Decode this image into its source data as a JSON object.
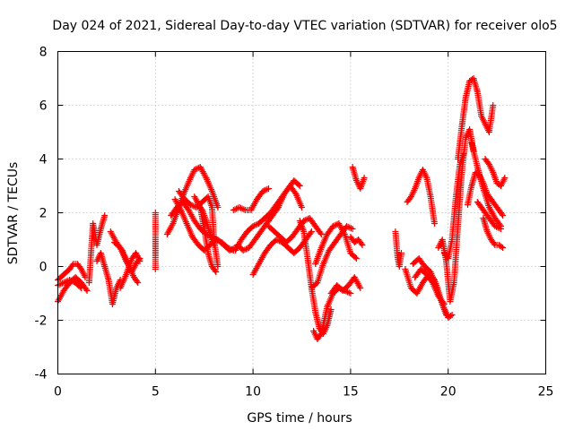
{
  "chart_data": {
    "type": "scatter",
    "title": "Day 024 of 2021, Sidereal Day-to-day VTEC variation (SDTVAR) for receiver olo5",
    "xlabel": "GPS time / hours",
    "ylabel": "SDTVAR / TECUs",
    "xlim": [
      0,
      25
    ],
    "ylim": [
      -4,
      8
    ],
    "xticks": [
      0,
      5,
      10,
      15,
      20,
      25
    ],
    "yticks": [
      -4,
      -2,
      0,
      2,
      4,
      6,
      8
    ],
    "xtick_labels": [
      "0",
      "5",
      "10",
      "15",
      "20",
      "25"
    ],
    "ytick_labels": [
      "-4",
      "-2",
      "0",
      "2",
      "4",
      "6",
      "8"
    ],
    "grid": true,
    "marker": "+",
    "color": "#ff0000",
    "series": [
      {
        "name": "s1",
        "x": [
          0.0,
          0.3,
          0.6,
          0.9,
          1.2,
          1.5
        ],
        "y": [
          -1.3,
          -0.9,
          -0.6,
          -0.4,
          -0.6,
          -0.9
        ]
      },
      {
        "name": "s2",
        "x": [
          0.0,
          0.3,
          0.6,
          0.8,
          1.0,
          1.2,
          1.4
        ],
        "y": [
          -0.5,
          -0.3,
          -0.1,
          0.1,
          0.1,
          -0.1,
          -0.4
        ]
      },
      {
        "name": "s3",
        "x": [
          0.0,
          0.3,
          0.6,
          0.9,
          1.2
        ],
        "y": [
          -0.7,
          -0.6,
          -0.5,
          -0.6,
          -0.8
        ]
      },
      {
        "name": "s4",
        "x": [
          1.6,
          1.8,
          2.0,
          2.2,
          2.4
        ],
        "y": [
          -0.6,
          1.6,
          0.8,
          1.4,
          1.9
        ]
      },
      {
        "name": "s5",
        "x": [
          2.0,
          2.2,
          2.4,
          2.6,
          2.8,
          3.0,
          3.2
        ],
        "y": [
          0.2,
          0.5,
          0.0,
          -0.5,
          -1.4,
          -0.8,
          -0.5
        ]
      },
      {
        "name": "s6",
        "x": [
          2.7,
          3.0,
          3.3,
          3.6,
          3.9,
          4.1
        ],
        "y": [
          1.3,
          0.9,
          0.6,
          0.1,
          -0.4,
          -0.6
        ]
      },
      {
        "name": "s7",
        "x": [
          2.9,
          3.2,
          3.5,
          3.8,
          4.0,
          4.2
        ],
        "y": [
          0.9,
          0.7,
          0.2,
          -0.2,
          0.1,
          0.3
        ]
      },
      {
        "name": "s8",
        "x": [
          3.2,
          3.5,
          3.8,
          4.0,
          4.2
        ],
        "y": [
          -0.8,
          -0.3,
          0.3,
          0.5,
          0.2
        ]
      },
      {
        "name": "s9",
        "x": [
          5.0,
          5.0,
          5.0,
          5.0
        ],
        "y": [
          2.0,
          1.0,
          0.4,
          -0.1
        ]
      },
      {
        "name": "s10",
        "x": [
          5.6,
          5.9,
          6.2,
          6.5,
          6.8,
          7.0,
          7.3,
          7.6,
          7.9,
          8.2
        ],
        "y": [
          1.2,
          1.6,
          2.2,
          2.8,
          3.3,
          3.6,
          3.7,
          3.3,
          2.8,
          2.2
        ]
      },
      {
        "name": "s11",
        "x": [
          5.8,
          6.1,
          6.4,
          6.7,
          7.0,
          7.3,
          7.6,
          7.9,
          8.2,
          8.5,
          8.8,
          9.1
        ],
        "y": [
          1.9,
          2.2,
          2.4,
          2.1,
          1.7,
          1.4,
          1.2,
          1.1,
          1.0,
          0.8,
          0.6,
          0.7
        ]
      },
      {
        "name": "s12",
        "x": [
          6.0,
          6.3,
          6.6,
          6.9,
          7.2,
          7.5,
          7.8,
          8.1,
          8.4,
          8.7,
          9.0
        ],
        "y": [
          2.5,
          2.1,
          1.6,
          1.1,
          0.8,
          0.6,
          0.8,
          1.0,
          0.9,
          0.7,
          0.6
        ]
      },
      {
        "name": "s13",
        "x": [
          6.2,
          6.5,
          6.8,
          7.1,
          7.4,
          7.7,
          7.9,
          8.0,
          8.2
        ],
        "y": [
          2.8,
          2.5,
          2.3,
          2.2,
          2.4,
          2.6,
          2.2,
          1.0,
          0.0
        ]
      },
      {
        "name": "s14",
        "x": [
          7.0,
          7.3,
          7.5,
          7.7,
          7.9,
          8.1
        ],
        "y": [
          2.6,
          2.2,
          1.4,
          0.5,
          0.0,
          -0.2
        ]
      },
      {
        "name": "s15",
        "x": [
          7.2,
          7.4,
          7.6,
          7.8,
          8.0
        ],
        "y": [
          2.3,
          2.1,
          1.7,
          1.2,
          0.8
        ]
      },
      {
        "name": "s16",
        "x": [
          9.0,
          9.3,
          9.6,
          9.9,
          10.2,
          10.5,
          10.8
        ],
        "y": [
          2.1,
          2.2,
          2.1,
          2.1,
          2.5,
          2.8,
          2.9
        ]
      },
      {
        "name": "s17",
        "x": [
          9.1,
          9.4,
          9.7,
          10.0,
          10.3,
          10.6,
          10.9,
          11.2,
          11.5,
          11.8,
          12.1,
          12.4
        ],
        "y": [
          0.6,
          1.0,
          1.3,
          1.5,
          1.6,
          1.8,
          2.0,
          2.3,
          2.6,
          2.9,
          3.2,
          3.0
        ]
      },
      {
        "name": "s18",
        "x": [
          9.2,
          9.5,
          9.8,
          10.1,
          10.4,
          10.7,
          11.0,
          11.3,
          11.6,
          11.9,
          12.2,
          12.5
        ],
        "y": [
          0.8,
          0.6,
          0.7,
          1.0,
          1.3,
          1.6,
          1.9,
          2.2,
          2.7,
          3.0,
          2.7,
          2.2
        ]
      },
      {
        "name": "s19",
        "x": [
          10.0,
          10.3,
          10.6,
          10.9,
          11.2,
          11.5,
          11.8,
          12.1,
          12.4,
          12.7,
          13.0
        ],
        "y": [
          -0.3,
          0.1,
          0.5,
          0.8,
          1.0,
          0.9,
          0.7,
          0.5,
          0.7,
          1.0,
          1.3
        ]
      },
      {
        "name": "s20",
        "x": [
          10.8,
          11.1,
          11.4,
          11.7,
          12.0,
          12.3,
          12.6,
          12.9,
          13.2,
          13.5
        ],
        "y": [
          1.5,
          1.3,
          1.1,
          0.9,
          1.1,
          1.4,
          1.7,
          1.8,
          1.5,
          1.2
        ]
      },
      {
        "name": "s21",
        "x": [
          12.4,
          12.6,
          12.8,
          13.0,
          13.2,
          13.4,
          13.6,
          13.8,
          14.0
        ],
        "y": [
          1.7,
          1.3,
          0.3,
          -0.8,
          -1.7,
          -2.3,
          -2.5,
          -2.2,
          -1.6
        ]
      },
      {
        "name": "s22",
        "x": [
          13.1,
          13.3,
          13.5,
          13.8,
          14.1,
          14.4,
          14.7,
          15.0
        ],
        "y": [
          -2.4,
          -2.7,
          -2.5,
          -1.5,
          -1.0,
          -0.8,
          -0.9,
          -1.0
        ]
      },
      {
        "name": "s23",
        "x": [
          13.0,
          13.3,
          13.6,
          13.9,
          14.2,
          14.5,
          14.8,
          15.1
        ],
        "y": [
          -0.8,
          -0.6,
          0.1,
          0.6,
          0.9,
          1.2,
          1.5,
          1.4
        ]
      },
      {
        "name": "s24",
        "x": [
          13.2,
          13.5,
          13.8,
          14.1,
          14.4,
          14.7,
          15.0,
          15.3
        ],
        "y": [
          0.1,
          0.7,
          1.2,
          1.5,
          1.6,
          1.2,
          0.5,
          0.3
        ]
      },
      {
        "name": "s25",
        "x": [
          14.0,
          14.3,
          14.6,
          14.9,
          15.2,
          15.5
        ],
        "y": [
          -1.0,
          -0.7,
          -0.9,
          -0.7,
          -0.4,
          -0.8
        ]
      },
      {
        "name": "s26",
        "x": [
          15.1,
          15.3,
          15.5,
          15.7
        ],
        "y": [
          3.7,
          3.2,
          2.9,
          3.3
        ]
      },
      {
        "name": "s27",
        "x": [
          15.0,
          15.2,
          15.4,
          15.6
        ],
        "y": [
          1.1,
          0.9,
          1.0,
          0.8
        ]
      },
      {
        "name": "s28",
        "x": [
          17.3,
          17.4,
          17.5,
          17.6
        ],
        "y": [
          1.3,
          0.4,
          0.0,
          0.5
        ]
      },
      {
        "name": "s29",
        "x": [
          17.9,
          18.1,
          18.3,
          18.5,
          18.7,
          18.9,
          19.1,
          19.3
        ],
        "y": [
          2.4,
          2.6,
          2.9,
          3.3,
          3.6,
          3.3,
          2.6,
          1.6
        ]
      },
      {
        "name": "s30",
        "x": [
          17.8,
          18.1,
          18.4,
          18.7,
          19.0,
          19.3,
          19.6,
          19.9
        ],
        "y": [
          -0.1,
          -0.8,
          -1.0,
          -0.6,
          -0.3,
          -0.5,
          -1.2,
          -1.8
        ]
      },
      {
        "name": "s31",
        "x": [
          18.2,
          18.5,
          18.8,
          19.1,
          19.4,
          19.7,
          20.0,
          20.2
        ],
        "y": [
          0.1,
          0.3,
          0.0,
          -0.2,
          -0.7,
          -1.4,
          -1.9,
          -1.8
        ]
      },
      {
        "name": "s32",
        "x": [
          18.3,
          18.6,
          18.9,
          19.2,
          19.5,
          19.8
        ],
        "y": [
          -0.4,
          -0.1,
          -0.3,
          -0.6,
          -1.1,
          -1.4
        ]
      },
      {
        "name": "s33",
        "x": [
          19.5,
          19.7,
          19.9,
          20.1,
          20.3,
          20.5,
          20.7,
          20.9,
          21.1,
          21.3
        ],
        "y": [
          0.7,
          1.0,
          0.2,
          -1.3,
          -0.6,
          1.5,
          3.5,
          4.8,
          5.1,
          4.3
        ]
      },
      {
        "name": "s34",
        "x": [
          19.8,
          20.0,
          20.2,
          20.4,
          20.6,
          20.8
        ],
        "y": [
          0.5,
          0.3,
          1.0,
          2.6,
          3.8,
          4.2
        ]
      },
      {
        "name": "s35",
        "x": [
          20.5,
          20.7,
          20.9,
          21.1,
          21.3,
          21.5,
          21.7,
          21.9,
          22.1,
          22.3
        ],
        "y": [
          4.0,
          5.2,
          6.3,
          6.9,
          7.0,
          6.5,
          5.6,
          5.3,
          5.0,
          6.0
        ]
      },
      {
        "name": "s36",
        "x": [
          21.0,
          21.2,
          21.4,
          21.6,
          21.8,
          22.0,
          22.2,
          22.4,
          22.6,
          22.8
        ],
        "y": [
          2.3,
          3.0,
          3.5,
          3.4,
          3.1,
          2.7,
          2.5,
          2.3,
          2.1,
          1.9
        ]
      },
      {
        "name": "s37",
        "x": [
          21.2,
          21.5,
          21.8,
          22.1,
          22.4,
          22.7
        ],
        "y": [
          4.6,
          3.7,
          2.9,
          2.2,
          1.8,
          1.5
        ]
      },
      {
        "name": "s38",
        "x": [
          21.5,
          21.8,
          22.1,
          22.4,
          22.7
        ],
        "y": [
          2.4,
          2.1,
          1.8,
          1.5,
          1.4
        ]
      },
      {
        "name": "s39",
        "x": [
          21.8,
          22.0,
          22.2,
          22.4,
          22.6,
          22.8
        ],
        "y": [
          1.8,
          1.3,
          1.0,
          0.8,
          0.8,
          0.7
        ]
      },
      {
        "name": "s40",
        "x": [
          21.9,
          22.1,
          22.3,
          22.5,
          22.7,
          22.9
        ],
        "y": [
          4.0,
          3.8,
          3.5,
          3.1,
          3.0,
          3.3
        ]
      }
    ]
  }
}
